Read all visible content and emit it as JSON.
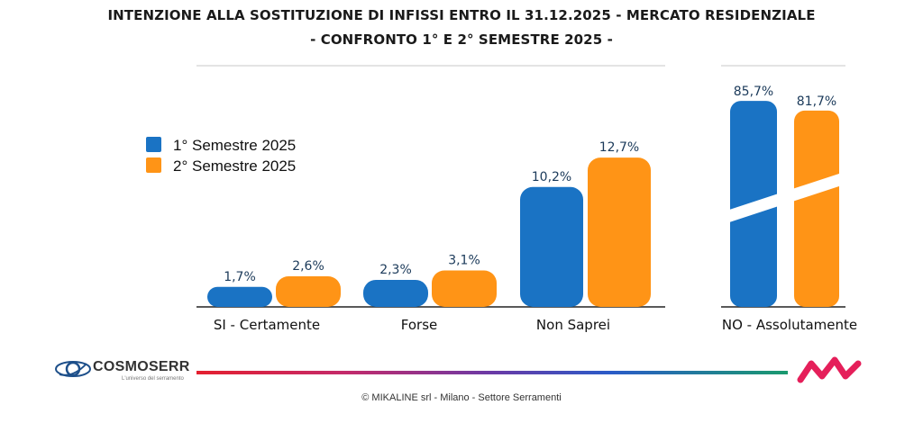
{
  "title_line1": "INTENZIONE ALLA SOSTITUZIONE DI INFISSI ENTRO IL 31.12.2025 - MERCATO RESIDENZIALE",
  "title_line2": "- CONFRONTO 1° E 2° SEMESTRE 2025 -",
  "colors": {
    "series1": "#1a73c4",
    "series2": "#ff9416",
    "value_label": "#1b3a5a"
  },
  "chart_data": {
    "type": "bar",
    "title": "INTENZIONE ALLA SOSTITUZIONE DI INFISSI ENTRO IL 31.12.2025 - MERCATO RESIDENZIALE",
    "subtitle": "- CONFRONTO 1° E 2° SEMESTRE 2025 -",
    "categories": [
      "SI - Certamente",
      "Forse",
      "Non Saprei",
      "NO - Assolutamente"
    ],
    "series": [
      {
        "name": "1° Semestre 2025",
        "values": [
          1.7,
          2.3,
          10.2,
          85.7
        ],
        "labels": [
          "1,7%",
          "2,3%",
          "10,2%",
          "85,7%"
        ]
      },
      {
        "name": "2° Semestre 2025",
        "values": [
          2.6,
          3.1,
          12.7,
          81.7
        ],
        "labels": [
          "2,6%",
          "3,1%",
          "12,7%",
          "81,7%"
        ]
      }
    ],
    "axis_break": "NO - Assolutamente",
    "legend": "left",
    "grid": false
  },
  "logo": {
    "name": "COSMOSERR",
    "tagline": "L'universo del serramento"
  },
  "footer": "© MIKALINE srl -  Milano - Settore Serramenti"
}
